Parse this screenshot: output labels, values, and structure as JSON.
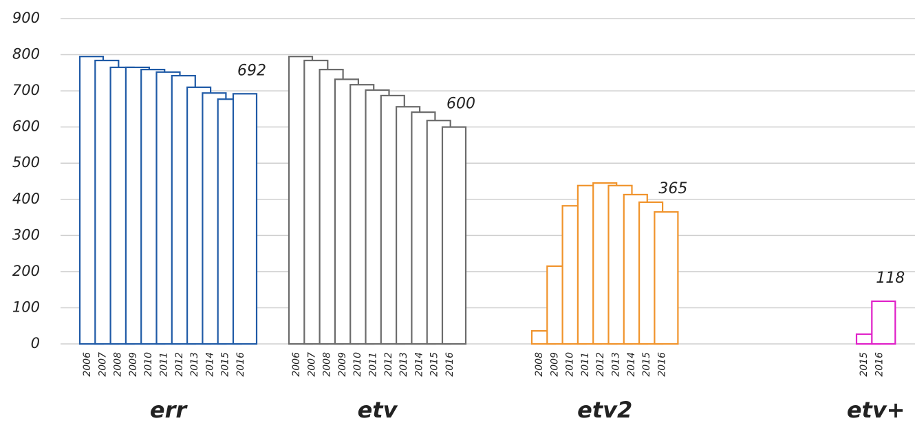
{
  "chart_data": {
    "type": "bar",
    "ylim": [
      0,
      900
    ],
    "yticks": [
      0,
      100,
      200,
      300,
      400,
      500,
      600,
      700,
      800,
      900
    ],
    "grid": true,
    "series": [
      {
        "name": "err",
        "color": "#1f5aa6",
        "categories": [
          "2006",
          "2007",
          "2008",
          "2009",
          "2010",
          "2011",
          "2012",
          "2013",
          "2014",
          "2015",
          "2016"
        ],
        "values": [
          795,
          784,
          765,
          765,
          759,
          752,
          742,
          710,
          694,
          677,
          692
        ]
      },
      {
        "name": "etv",
        "color": "#6b6b6b",
        "categories": [
          "2006",
          "2007",
          "2008",
          "2009",
          "2010",
          "2011",
          "2012",
          "2013",
          "2014",
          "2015",
          "2016"
        ],
        "values": [
          795,
          784,
          759,
          732,
          717,
          702,
          687,
          656,
          641,
          618,
          600
        ]
      },
      {
        "name": "etv2",
        "color": "#f0932b",
        "categories": [
          "2008",
          "2009",
          "2010",
          "2011",
          "2012",
          "2013",
          "2014",
          "2015",
          "2016"
        ],
        "values": [
          36,
          215,
          382,
          438,
          445,
          438,
          413,
          392,
          365
        ]
      },
      {
        "name": "etv+",
        "color": "#e020c8",
        "categories": [
          "2015",
          "2016"
        ],
        "values": [
          27,
          118
        ]
      }
    ]
  }
}
